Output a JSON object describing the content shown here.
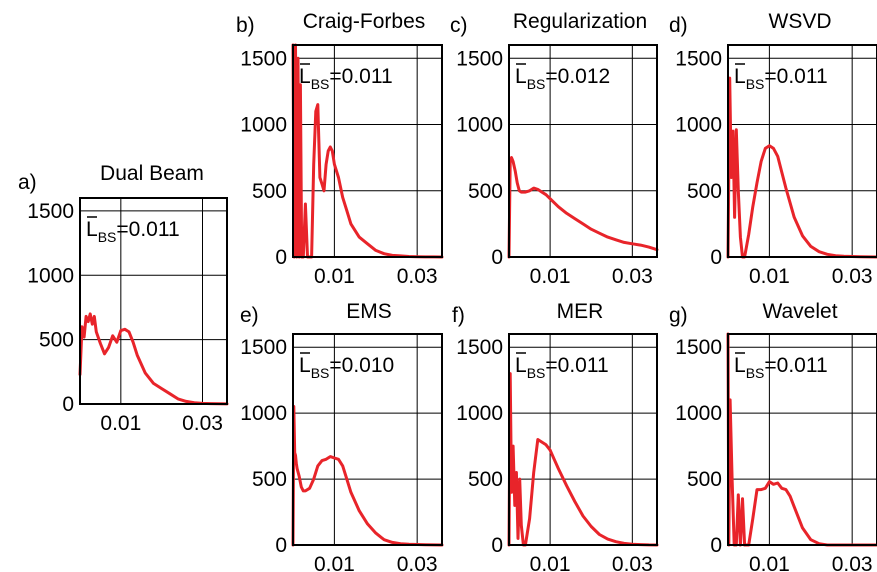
{
  "figure": {
    "line_color": "#e8242a",
    "frame_color": "#000000"
  },
  "chart_data": [
    {
      "id": "a",
      "panel_label": "a)",
      "title": "Dual Beam",
      "type": "line",
      "annotation": {
        "symbol": "L",
        "subscript": "BS",
        "value": "=0.011"
      },
      "xlim": [
        0,
        0.036
      ],
      "ylim": [
        0,
        1600
      ],
      "xticks": [
        0.01,
        0.03
      ],
      "xtick_labels": [
        "0.01",
        "0.03"
      ],
      "yticks": [
        0,
        500,
        1000,
        1500
      ],
      "ytick_labels": [
        "0",
        "500",
        "1000",
        "1500"
      ],
      "grid": true,
      "series": [
        {
          "x": [
            0,
            0.0005,
            0.001,
            0.0015,
            0.002,
            0.0025,
            0.003,
            0.0035,
            0.004,
            0.005,
            0.006,
            0.007,
            0.008,
            0.009,
            0.01,
            0.011,
            0.012,
            0.013,
            0.014,
            0.016,
            0.018,
            0.02,
            0.022,
            0.024,
            0.026,
            0.028,
            0.03,
            0.032,
            0.034,
            0.036
          ],
          "y": [
            230,
            600,
            520,
            680,
            640,
            700,
            620,
            680,
            560,
            470,
            390,
            440,
            530,
            480,
            570,
            580,
            560,
            480,
            380,
            240,
            160,
            120,
            80,
            40,
            20,
            10,
            5,
            3,
            2,
            1
          ]
        }
      ]
    },
    {
      "id": "b",
      "panel_label": "b)",
      "title": "Craig-Forbes",
      "type": "line",
      "annotation": {
        "symbol": "L",
        "subscript": "BS",
        "value": "=0.011"
      },
      "xlim": [
        0,
        0.036
      ],
      "ylim": [
        0,
        1600
      ],
      "xticks": [
        0.01,
        0.03
      ],
      "xtick_labels": [
        "0.01",
        "0.03"
      ],
      "yticks": [
        0,
        500,
        1000,
        1500
      ],
      "ytick_labels": [
        "0",
        "500",
        "1000",
        "1500"
      ],
      "grid": true,
      "series": [
        {
          "x": [
            0,
            0.0003,
            0.0006,
            0.0009,
            0.0012,
            0.0015,
            0.0018,
            0.0021,
            0.0025,
            0.003,
            0.0035,
            0.004,
            0.0045,
            0.005,
            0.0055,
            0.006,
            0.0065,
            0.007,
            0.0075,
            0.008,
            0.0085,
            0.009,
            0.0095,
            0.01,
            0.011,
            0.012,
            0.013,
            0.014,
            0.016,
            0.018,
            0.02,
            0.022,
            0.024,
            0.026,
            0.028,
            0.03,
            0.032,
            0.034,
            0.036
          ],
          "y": [
            1600,
            0,
            1600,
            0,
            1500,
            0,
            1300,
            0,
            0,
            400,
            0,
            0,
            0,
            700,
            1100,
            1150,
            600,
            550,
            500,
            700,
            800,
            830,
            800,
            700,
            600,
            450,
            350,
            250,
            150,
            100,
            50,
            25,
            12,
            8,
            4,
            2,
            1,
            1,
            0
          ]
        }
      ]
    },
    {
      "id": "c",
      "panel_label": "c)",
      "title": "Regularization",
      "type": "line",
      "annotation": {
        "symbol": "L",
        "subscript": "BS",
        "value": "=0.012"
      },
      "xlim": [
        0,
        0.036
      ],
      "ylim": [
        0,
        1600
      ],
      "xticks": [
        0.01,
        0.03
      ],
      "xtick_labels": [
        "0.01",
        "0.03"
      ],
      "yticks": [
        0,
        500,
        1000,
        1500
      ],
      "ytick_labels": [
        "0",
        "500",
        "1000",
        "1500"
      ],
      "grid": true,
      "series": [
        {
          "x": [
            0,
            0.0003,
            0.0006,
            0.001,
            0.0015,
            0.002,
            0.0025,
            0.003,
            0.004,
            0.005,
            0.006,
            0.007,
            0.008,
            0.009,
            0.01,
            0.012,
            0.014,
            0.016,
            0.018,
            0.02,
            0.022,
            0.024,
            0.026,
            0.028,
            0.03,
            0.032,
            0.034,
            0.036
          ],
          "y": [
            0,
            720,
            750,
            720,
            650,
            560,
            500,
            490,
            490,
            500,
            520,
            510,
            490,
            470,
            440,
            380,
            330,
            290,
            250,
            210,
            180,
            150,
            130,
            110,
            100,
            90,
            75,
            55
          ]
        }
      ]
    },
    {
      "id": "d",
      "panel_label": "d)",
      "title": "WSVD",
      "type": "line",
      "annotation": {
        "symbol": "L",
        "subscript": "BS",
        "value": "=0.011"
      },
      "xlim": [
        0,
        0.036
      ],
      "ylim": [
        0,
        1600
      ],
      "xticks": [
        0.01,
        0.03
      ],
      "xtick_labels": [
        "0.01",
        "0.03"
      ],
      "yticks": [
        0,
        500,
        1000,
        1500
      ],
      "ytick_labels": [
        "0",
        "500",
        "1000",
        "1500"
      ],
      "grid": true,
      "series": [
        {
          "x": [
            0,
            0.0004,
            0.0008,
            0.0012,
            0.0016,
            0.002,
            0.0025,
            0.003,
            0.0035,
            0.004,
            0.005,
            0.006,
            0.007,
            0.008,
            0.009,
            0.01,
            0.011,
            0.012,
            0.013,
            0.014,
            0.016,
            0.018,
            0.02,
            0.022,
            0.024,
            0.026,
            0.028,
            0.03,
            0.032,
            0.034,
            0.036
          ],
          "y": [
            0,
            1350,
            600,
            950,
            300,
            960,
            500,
            150,
            0,
            0,
            170,
            380,
            560,
            720,
            820,
            840,
            820,
            760,
            640,
            520,
            300,
            160,
            80,
            40,
            20,
            10,
            6,
            4,
            2,
            1,
            0
          ]
        }
      ]
    },
    {
      "id": "e",
      "panel_label": "e)",
      "title": "EMS",
      "type": "line",
      "annotation": {
        "symbol": "L",
        "subscript": "BS",
        "value": "=0.010"
      },
      "xlim": [
        0,
        0.036
      ],
      "ylim": [
        0,
        1600
      ],
      "xticks": [
        0.01,
        0.03
      ],
      "xtick_labels": [
        "0.01",
        "0.03"
      ],
      "yticks": [
        0,
        500,
        1000,
        1500
      ],
      "ytick_labels": [
        "0",
        "500",
        "1000",
        "1500"
      ],
      "grid": true,
      "series": [
        {
          "x": [
            0,
            0.0002,
            0.0004,
            0.0006,
            0.0008,
            0.001,
            0.0015,
            0.002,
            0.0025,
            0.003,
            0.004,
            0.005,
            0.006,
            0.007,
            0.008,
            0.009,
            0.01,
            0.011,
            0.012,
            0.013,
            0.014,
            0.016,
            0.018,
            0.02,
            0.022,
            0.024,
            0.026,
            0.028,
            0.03,
            0.032,
            0.034,
            0.036
          ],
          "y": [
            0,
            1050,
            700,
            680,
            620,
            580,
            520,
            440,
            410,
            410,
            430,
            500,
            600,
            640,
            650,
            670,
            660,
            650,
            600,
            500,
            400,
            260,
            160,
            90,
            40,
            20,
            10,
            6,
            4,
            2,
            1,
            0
          ]
        }
      ]
    },
    {
      "id": "f",
      "panel_label": "f)",
      "title": "MER",
      "type": "line",
      "annotation": {
        "symbol": "L",
        "subscript": "BS",
        "value": "=0.011"
      },
      "xlim": [
        0,
        0.036
      ],
      "ylim": [
        0,
        1600
      ],
      "xticks": [
        0.01,
        0.03
      ],
      "xtick_labels": [
        "0.01",
        "0.03"
      ],
      "yticks": [
        0,
        500,
        1000,
        1500
      ],
      "ytick_labels": [
        "0",
        "500",
        "1000",
        "1500"
      ],
      "grid": true,
      "series": [
        {
          "x": [
            0,
            0.0003,
            0.0006,
            0.001,
            0.0014,
            0.0018,
            0.0022,
            0.0026,
            0.003,
            0.0035,
            0.004,
            0.005,
            0.006,
            0.007,
            0.008,
            0.009,
            0.01,
            0.011,
            0.012,
            0.014,
            0.016,
            0.018,
            0.02,
            0.022,
            0.024,
            0.026,
            0.028,
            0.03,
            0.032,
            0.034,
            0.036
          ],
          "y": [
            0,
            1300,
            400,
            750,
            300,
            550,
            50,
            500,
            150,
            0,
            0,
            200,
            550,
            800,
            780,
            760,
            720,
            650,
            580,
            450,
            330,
            220,
            140,
            80,
            45,
            25,
            12,
            6,
            3,
            1,
            0
          ]
        }
      ]
    },
    {
      "id": "g",
      "panel_label": "g)",
      "title": "Wavelet",
      "type": "line",
      "annotation": {
        "symbol": "L",
        "subscript": "BS",
        "value": "=0.011"
      },
      "xlim": [
        0,
        0.036
      ],
      "ylim": [
        0,
        1600
      ],
      "xticks": [
        0.01,
        0.03
      ],
      "xtick_labels": [
        "0.01",
        "0.03"
      ],
      "yticks": [
        0,
        500,
        1000,
        1500
      ],
      "ytick_labels": [
        "0",
        "500",
        "1000",
        "1500"
      ],
      "grid": true,
      "series": [
        {
          "x": [
            0,
            0.0002,
            0.0005,
            0.001,
            0.0015,
            0.002,
            0.0025,
            0.003,
            0.0035,
            0.004,
            0.0045,
            0.005,
            0.006,
            0.007,
            0.008,
            0.009,
            0.01,
            0.011,
            0.012,
            0.013,
            0.014,
            0.015,
            0.016,
            0.018,
            0.02,
            0.022,
            0.024,
            0.026,
            0.028,
            0.03,
            0.032,
            0.034,
            0.036
          ],
          "y": [
            1600,
            0,
            1100,
            500,
            0,
            0,
            380,
            0,
            350,
            0,
            0,
            0,
            200,
            420,
            420,
            430,
            480,
            460,
            470,
            430,
            420,
            370,
            290,
            130,
            40,
            10,
            0,
            0,
            0,
            0,
            0,
            0,
            0
          ]
        }
      ]
    }
  ]
}
